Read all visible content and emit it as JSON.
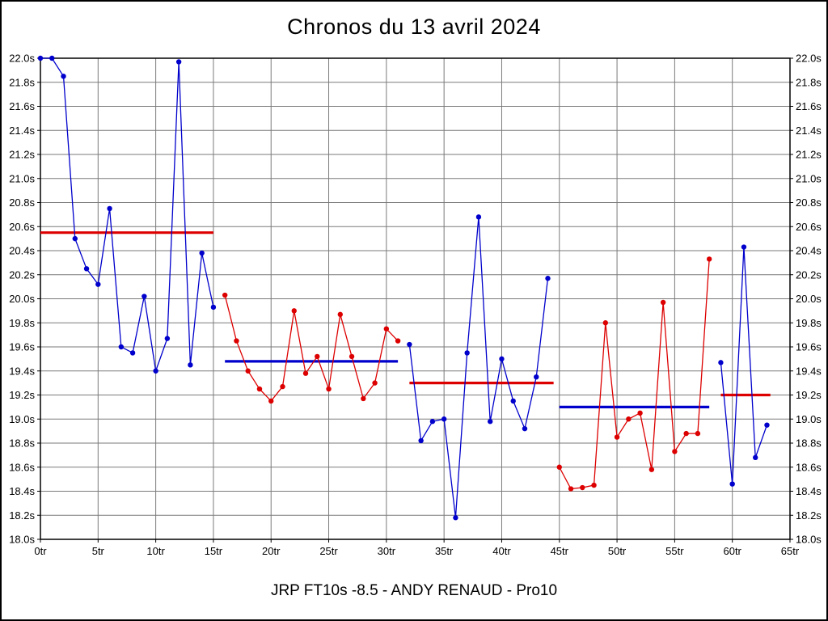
{
  "title": "Chronos du 13 avril 2024",
  "subtitle": "JRP FT10s -8.5 - ANDY RENAUD - Pro10",
  "chart_data": {
    "type": "line",
    "title": "Chronos du 13 avril 2024",
    "xlabel": "",
    "ylabel": "",
    "x_tick_suffix": "tr",
    "y_tick_suffix": "s",
    "xlim": [
      0,
      65
    ],
    "ylim": [
      18.0,
      22.0
    ],
    "x_ticks": [
      0,
      5,
      10,
      15,
      20,
      25,
      30,
      35,
      40,
      45,
      50,
      55,
      60,
      65
    ],
    "y_ticks": [
      18.0,
      18.2,
      18.4,
      18.6,
      18.8,
      19.0,
      19.2,
      19.4,
      19.6,
      19.8,
      20.0,
      20.2,
      20.4,
      20.6,
      20.8,
      21.0,
      21.2,
      21.4,
      21.6,
      21.8,
      22.0
    ],
    "grid": true,
    "legend_position": "none",
    "colors": {
      "blue": "#0000cc",
      "red": "#dd0000",
      "grid": "#7a7a7a",
      "axis": "#000000",
      "background": "#ffffff"
    },
    "series": [
      {
        "name": "stint-1-blue",
        "color": "blue",
        "x": [
          0,
          1,
          2,
          3,
          4,
          5,
          6,
          7,
          8,
          9,
          10,
          11,
          12,
          13,
          14,
          15
        ],
        "y": [
          22.0,
          22.0,
          21.85,
          20.5,
          20.25,
          20.12,
          20.75,
          19.6,
          19.55,
          20.02,
          19.4,
          19.67,
          21.97,
          19.45,
          20.38,
          19.93
        ]
      },
      {
        "name": "stint-2-red",
        "color": "red",
        "x": [
          16,
          17,
          18,
          19,
          20,
          21,
          22,
          23,
          24,
          25,
          26,
          27,
          28,
          29,
          30,
          31
        ],
        "y": [
          20.03,
          19.65,
          19.4,
          19.25,
          19.15,
          19.27,
          19.9,
          19.38,
          19.52,
          19.25,
          19.87,
          19.52,
          19.17,
          19.3,
          19.75,
          19.65
        ]
      },
      {
        "name": "stint-3-blue",
        "color": "blue",
        "x": [
          32,
          33,
          34,
          35,
          36,
          37,
          38,
          39,
          40,
          41,
          42,
          43,
          44
        ],
        "y": [
          19.62,
          18.82,
          18.98,
          19.0,
          18.18,
          19.55,
          20.68,
          18.98,
          19.5,
          19.15,
          18.92,
          19.35,
          20.17
        ]
      },
      {
        "name": "stint-4-red",
        "color": "red",
        "x": [
          45,
          46,
          47,
          48,
          49,
          50,
          51,
          52,
          53,
          54,
          55,
          56,
          57,
          58
        ],
        "y": [
          18.6,
          18.42,
          18.43,
          18.45,
          19.8,
          18.85,
          19.0,
          19.05,
          18.58,
          19.97,
          18.73,
          18.88,
          18.88,
          20.33
        ]
      },
      {
        "name": "stint-5-blue",
        "color": "blue",
        "x": [
          59,
          60,
          61,
          62,
          63
        ],
        "y": [
          19.47,
          18.46,
          20.43,
          18.68,
          18.95
        ]
      }
    ],
    "average_lines": [
      {
        "name": "average-stint-1",
        "color": "red",
        "from": 0,
        "to": 15,
        "y": 20.55
      },
      {
        "name": "average-stint-2",
        "color": "blue",
        "from": 16,
        "to": 31,
        "y": 19.48
      },
      {
        "name": "average-stint-3",
        "color": "red",
        "from": 32,
        "to": 44.5,
        "y": 19.3
      },
      {
        "name": "average-stint-4",
        "color": "blue",
        "from": 45,
        "to": 58,
        "y": 19.1
      },
      {
        "name": "average-stint-5",
        "color": "red",
        "from": 59,
        "to": 63.3,
        "y": 19.2
      }
    ]
  }
}
